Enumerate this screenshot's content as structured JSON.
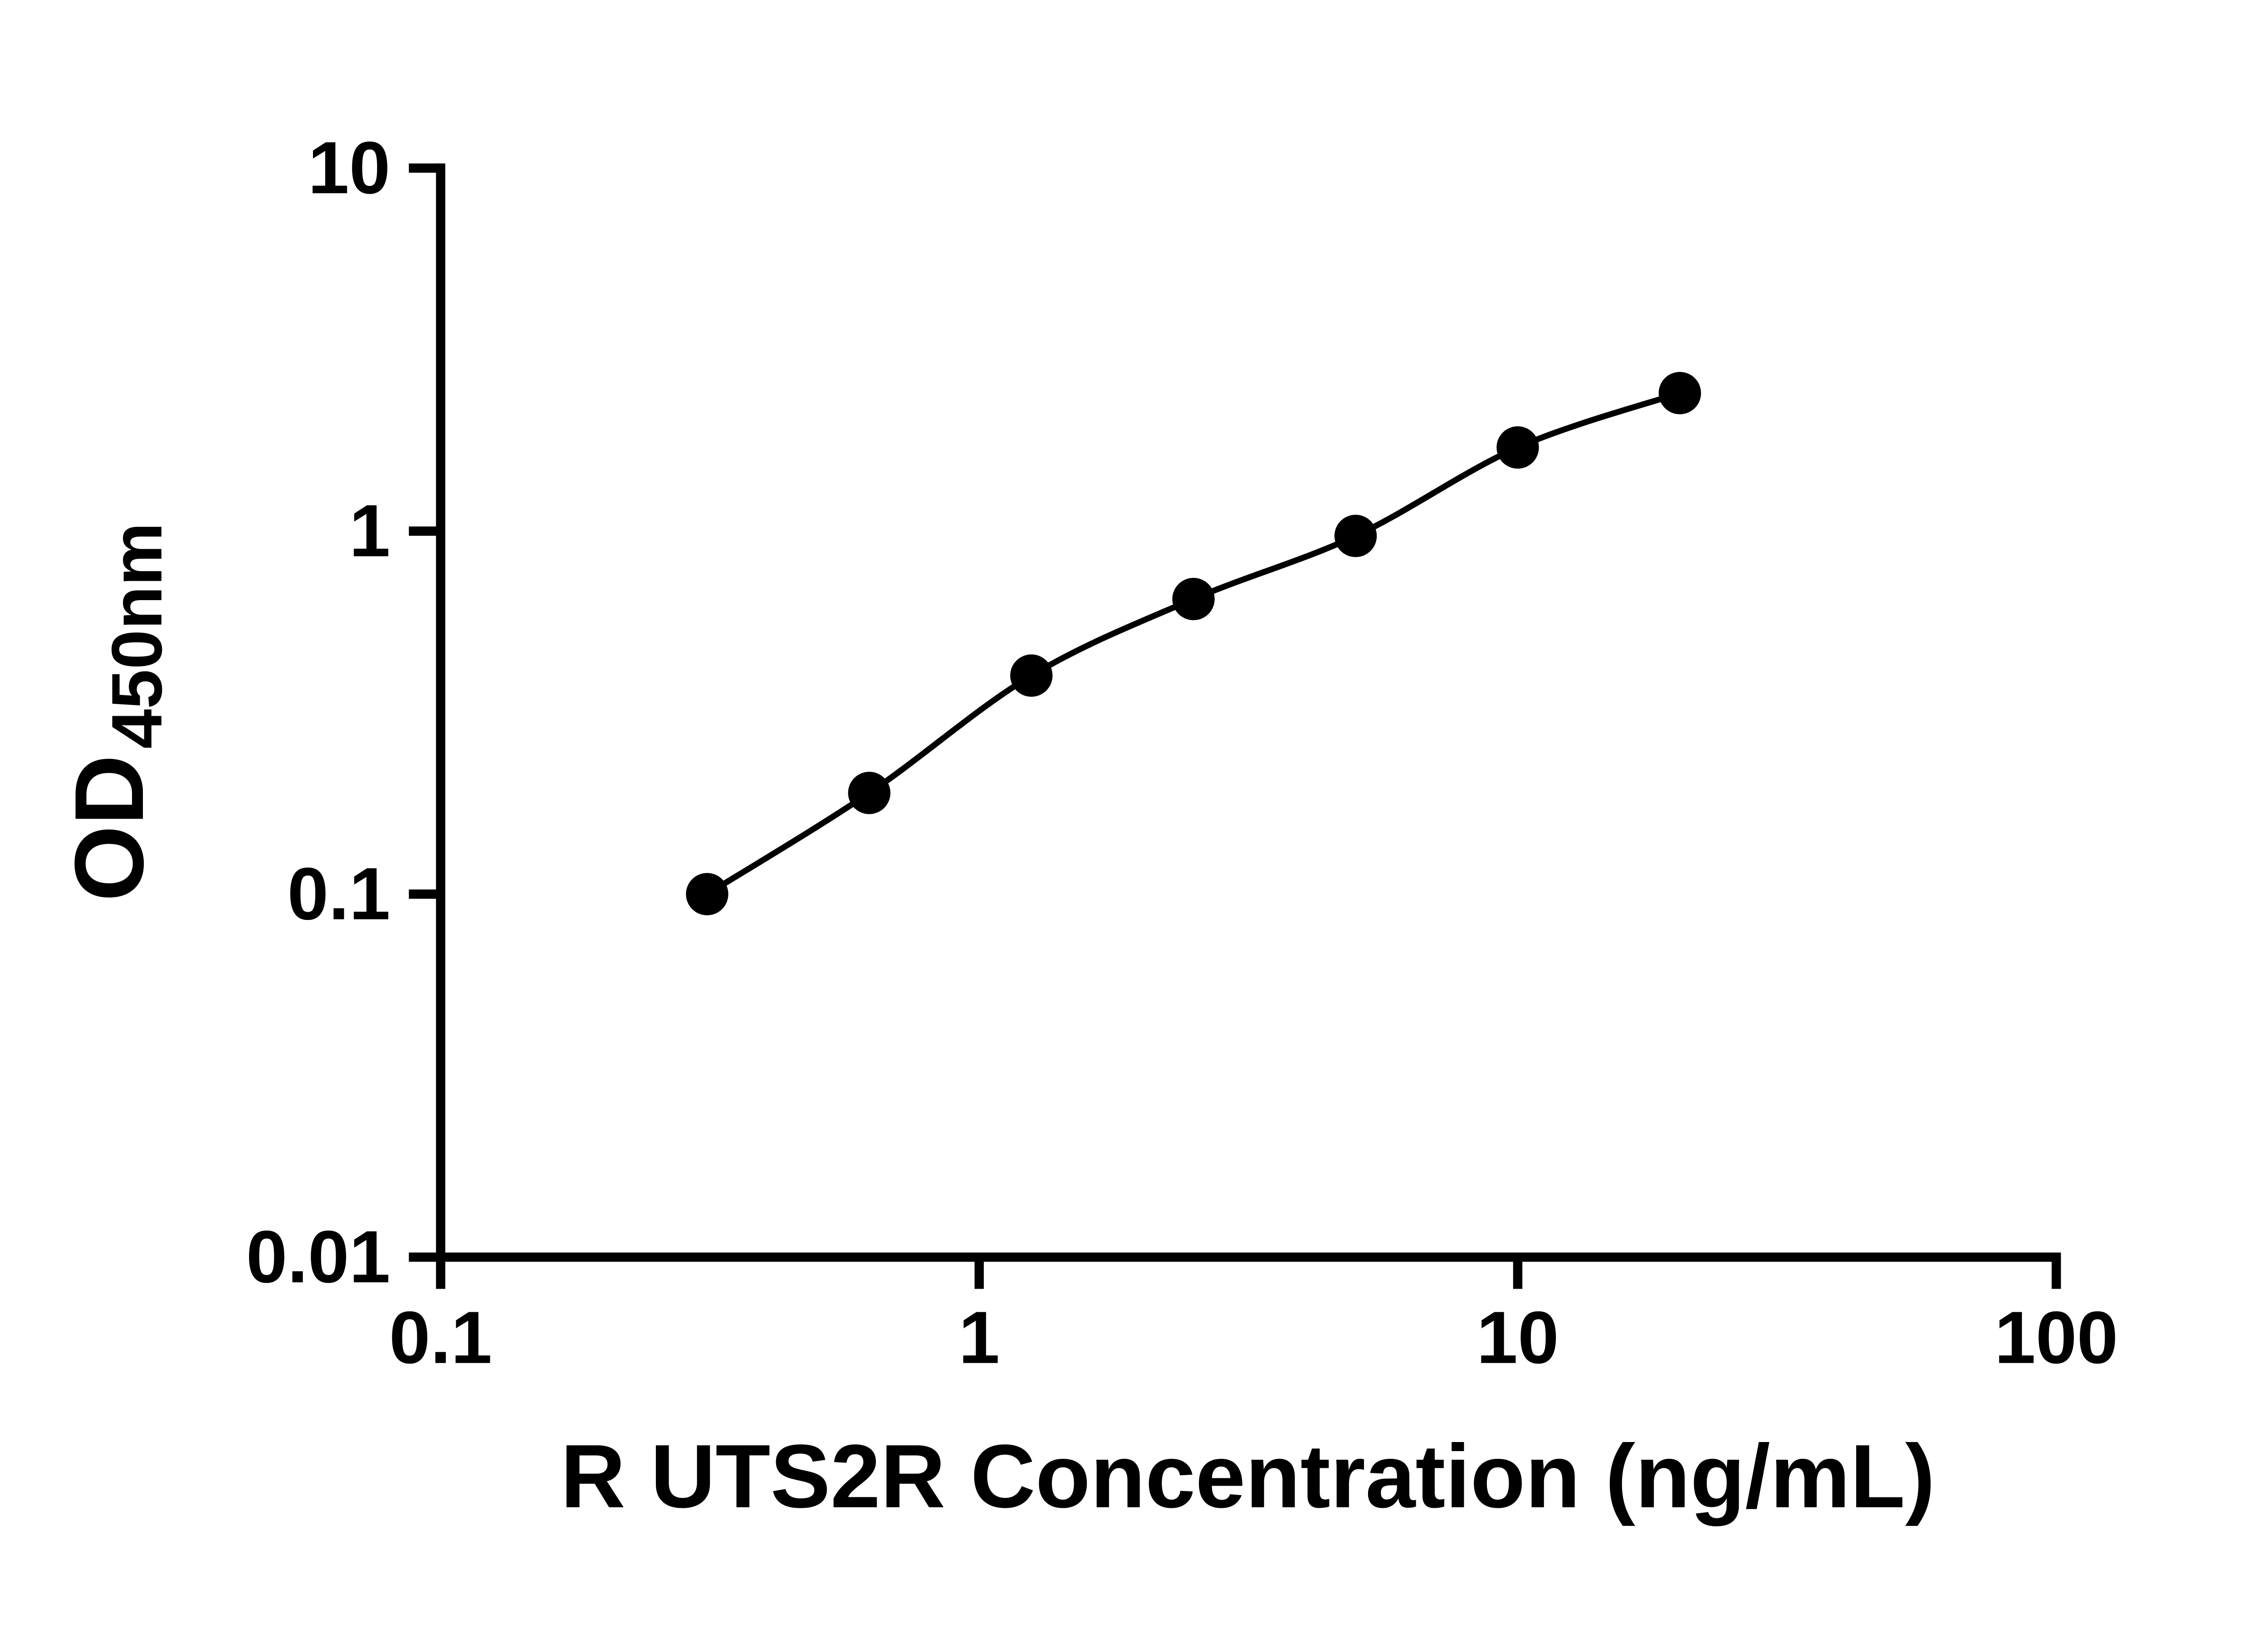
{
  "chart_data": {
    "type": "scatter",
    "title": "",
    "xlabel": "R UTS2R Concentration (ng/mL)",
    "ylabel_main": "OD",
    "ylabel_sub": "450nm",
    "x_scale": "log",
    "y_scale": "log",
    "xlim": [
      0.1,
      100
    ],
    "ylim": [
      0.01,
      10
    ],
    "x": [
      0.3125,
      0.625,
      1.25,
      2.5,
      5,
      10,
      20
    ],
    "y": [
      0.1,
      0.19,
      0.4,
      0.65,
      0.97,
      1.7,
      2.4
    ],
    "x_ticks": [
      {
        "value": 0.1,
        "label": "0.1"
      },
      {
        "value": 1,
        "label": "1"
      },
      {
        "value": 10,
        "label": "10"
      },
      {
        "value": 100,
        "label": "100"
      }
    ],
    "y_ticks": [
      {
        "value": 0.01,
        "label": "0.01"
      },
      {
        "value": 0.1,
        "label": "0.1"
      },
      {
        "value": 1,
        "label": "1"
      },
      {
        "value": 10,
        "label": "10"
      }
    ],
    "grid": false,
    "legend": null,
    "marker_color": "#000000",
    "line_color": "#000000",
    "axis_color": "#000000",
    "background": "#ffffff"
  }
}
